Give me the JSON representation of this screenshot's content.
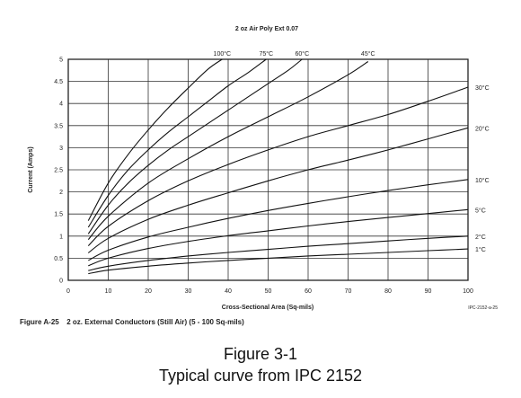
{
  "figure_caption": {
    "number": "Figure A-25",
    "text": "2 oz. External Conductors (Still Air) (5 - 100 Sq-mils)"
  },
  "captions": {
    "line1": "Figure 3-1",
    "line2": "Typical curve from IPC 2152"
  },
  "chart_data": {
    "type": "line",
    "title": "2 oz Air Poly Ext 0.07",
    "xlabel": "Cross-Sectional Area (Sq-mils)",
    "ylabel": "Current (Amps)",
    "xlim": [
      0,
      100
    ],
    "ylim": [
      0,
      5
    ],
    "x_ticks": [
      "0",
      "10",
      "20",
      "30",
      "40",
      "50",
      "60",
      "70",
      "80",
      "90",
      "100"
    ],
    "y_ticks": [
      "0",
      "0.5",
      "1",
      "1.5",
      "2",
      "2.5",
      "3",
      "3.5",
      "4",
      "4.5",
      "5"
    ],
    "grid": true,
    "footnote": "IPC-2152-a-25",
    "series": [
      {
        "name": "100°C",
        "x": [
          5,
          10,
          15,
          20,
          25,
          30,
          35,
          38.5
        ],
        "y": [
          1.35,
          2.2,
          2.85,
          3.4,
          3.9,
          4.35,
          4.78,
          5.0
        ]
      },
      {
        "name": "75°C",
        "x": [
          5,
          10,
          15,
          20,
          25,
          30,
          35,
          40,
          45,
          49.5
        ],
        "y": [
          1.2,
          1.92,
          2.5,
          2.95,
          3.35,
          3.7,
          4.05,
          4.4,
          4.7,
          5.0
        ]
      },
      {
        "name": "60°C",
        "x": [
          5,
          10,
          15,
          20,
          25,
          30,
          35,
          40,
          45,
          50,
          55,
          58.5
        ],
        "y": [
          1.05,
          1.7,
          2.2,
          2.6,
          2.95,
          3.25,
          3.55,
          3.85,
          4.15,
          4.45,
          4.75,
          5.0
        ]
      },
      {
        "name": "45°C",
        "x": [
          5,
          10,
          20,
          30,
          40,
          50,
          60,
          70,
          75
        ],
        "y": [
          0.92,
          1.45,
          2.2,
          2.75,
          3.25,
          3.7,
          4.15,
          4.65,
          4.95
        ]
      },
      {
        "name": "30°C",
        "x": [
          5,
          10,
          20,
          30,
          40,
          50,
          60,
          70,
          80,
          90,
          100
        ],
        "y": [
          0.78,
          1.22,
          1.8,
          2.25,
          2.62,
          2.95,
          3.25,
          3.5,
          3.75,
          4.05,
          4.37
        ]
      },
      {
        "name": "20°C",
        "x": [
          5,
          10,
          20,
          30,
          40,
          50,
          60,
          70,
          80,
          90,
          100
        ],
        "y": [
          0.62,
          0.95,
          1.38,
          1.7,
          1.98,
          2.25,
          2.5,
          2.72,
          2.95,
          3.2,
          3.45
        ]
      },
      {
        "name": "10°C",
        "x": [
          5,
          10,
          20,
          30,
          40,
          50,
          60,
          70,
          80,
          90,
          100
        ],
        "y": [
          0.45,
          0.68,
          0.98,
          1.2,
          1.4,
          1.58,
          1.74,
          1.89,
          2.03,
          2.16,
          2.28
        ]
      },
      {
        "name": "5°C",
        "x": [
          5,
          10,
          20,
          30,
          40,
          50,
          60,
          70,
          80,
          90,
          100
        ],
        "y": [
          0.33,
          0.5,
          0.72,
          0.88,
          1.01,
          1.12,
          1.23,
          1.33,
          1.42,
          1.51,
          1.6
        ]
      },
      {
        "name": "2°C",
        "x": [
          5,
          10,
          20,
          30,
          40,
          50,
          60,
          70,
          80,
          90,
          100
        ],
        "y": [
          0.22,
          0.32,
          0.45,
          0.55,
          0.63,
          0.7,
          0.77,
          0.83,
          0.89,
          0.95,
          1.0
        ]
      },
      {
        "name": "1°C",
        "x": [
          5,
          10,
          20,
          30,
          40,
          50,
          60,
          70,
          80,
          90,
          100
        ],
        "y": [
          0.15,
          0.23,
          0.32,
          0.39,
          0.45,
          0.5,
          0.55,
          0.59,
          0.63,
          0.67,
          0.71
        ]
      }
    ]
  }
}
